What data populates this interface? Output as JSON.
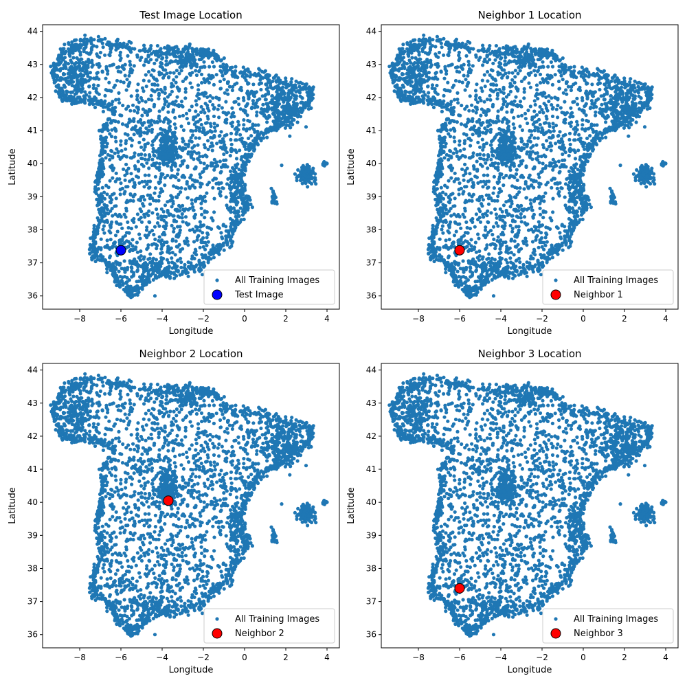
{
  "chart_data": [
    {
      "type": "scatter",
      "title": "Test Image Location",
      "xlabel": "Longitude",
      "ylabel": "Latitude",
      "xlim": [
        -9.8,
        4.6
      ],
      "ylim": [
        35.6,
        44.2
      ],
      "xticks": [
        -8,
        -6,
        -4,
        -2,
        0,
        2,
        4
      ],
      "yticks": [
        36,
        37,
        38,
        39,
        40,
        41,
        42,
        43,
        44
      ],
      "grid": false,
      "legend_position": "lower-right",
      "series": [
        {
          "name": "All Training Images",
          "color": "#1f77b4",
          "role": "background"
        },
        {
          "name": "Test Image",
          "color": "#0000ff",
          "role": "highlight",
          "x": [
            -6.0
          ],
          "y": [
            37.38
          ]
        }
      ]
    },
    {
      "type": "scatter",
      "title": "Neighbor 1 Location",
      "xlabel": "Longitude",
      "ylabel": "Latitude",
      "xlim": [
        -9.8,
        4.6
      ],
      "ylim": [
        35.6,
        44.2
      ],
      "xticks": [
        -8,
        -6,
        -4,
        -2,
        0,
        2,
        4
      ],
      "yticks": [
        36,
        37,
        38,
        39,
        40,
        41,
        42,
        43,
        44
      ],
      "grid": false,
      "legend_position": "lower-right",
      "series": [
        {
          "name": "All Training Images",
          "color": "#1f77b4",
          "role": "background"
        },
        {
          "name": "Neighbor 1",
          "color": "#ff0000",
          "role": "highlight",
          "x": [
            -6.0
          ],
          "y": [
            37.38
          ]
        }
      ]
    },
    {
      "type": "scatter",
      "title": "Neighbor 2 Location",
      "xlabel": "Longitude",
      "ylabel": "Latitude",
      "xlim": [
        -9.8,
        4.6
      ],
      "ylim": [
        35.6,
        44.2
      ],
      "xticks": [
        -8,
        -6,
        -4,
        -2,
        0,
        2,
        4
      ],
      "yticks": [
        36,
        37,
        38,
        39,
        40,
        41,
        42,
        43,
        44
      ],
      "grid": false,
      "legend_position": "lower-right",
      "series": [
        {
          "name": "All Training Images",
          "color": "#1f77b4",
          "role": "background"
        },
        {
          "name": "Neighbor 2",
          "color": "#ff0000",
          "role": "highlight",
          "x": [
            -3.7
          ],
          "y": [
            40.05
          ]
        }
      ]
    },
    {
      "type": "scatter",
      "title": "Neighbor 3 Location",
      "xlabel": "Longitude",
      "ylabel": "Latitude",
      "xlim": [
        -9.8,
        4.6
      ],
      "ylim": [
        35.6,
        44.2
      ],
      "xticks": [
        -8,
        -6,
        -4,
        -2,
        0,
        2,
        4
      ],
      "yticks": [
        36,
        37,
        38,
        39,
        40,
        41,
        42,
        43,
        44
      ],
      "grid": false,
      "legend_position": "lower-right",
      "series": [
        {
          "name": "All Training Images",
          "color": "#1f77b4",
          "role": "background"
        },
        {
          "name": "Neighbor 3",
          "color": "#ff0000",
          "role": "highlight",
          "x": [
            -6.0
          ],
          "y": [
            37.4
          ]
        }
      ]
    }
  ]
}
